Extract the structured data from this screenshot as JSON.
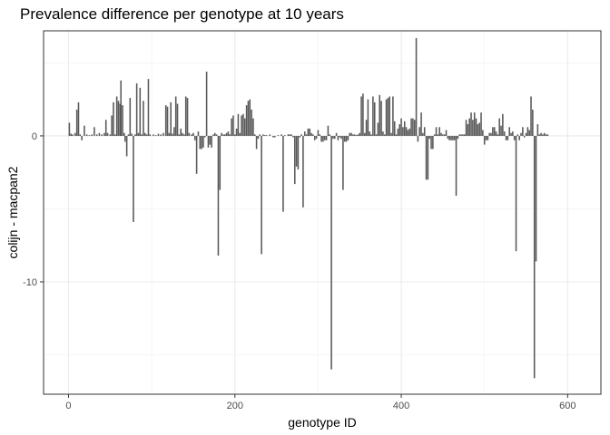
{
  "chart_data": {
    "type": "bar",
    "title": "Prevalence difference per genotype at 10 years",
    "xlabel": "genotype ID",
    "ylabel": "colijn - macpan2",
    "xlim": [
      -30,
      640
    ],
    "ylim": [
      -17.7,
      7.2
    ],
    "xticks": [
      0,
      200,
      400,
      600
    ],
    "yticks": [
      0,
      -10
    ],
    "x_minor_gridlines": [
      100,
      300,
      500
    ],
    "y_minor_gridlines": [
      5,
      -5,
      -15
    ],
    "grid": true,
    "legend": "none",
    "bar_color": "#595959",
    "points": [
      [
        1,
        0.9
      ],
      [
        3,
        0.15
      ],
      [
        5,
        0.1
      ],
      [
        8,
        0.2
      ],
      [
        10,
        1.8
      ],
      [
        12,
        2.3
      ],
      [
        14,
        0.1
      ],
      [
        16,
        -0.3
      ],
      [
        19,
        0.7
      ],
      [
        22,
        0.1
      ],
      [
        25,
        0.05
      ],
      [
        28,
        0.1
      ],
      [
        31,
        0.6
      ],
      [
        34,
        0.1
      ],
      [
        37,
        0.2
      ],
      [
        40,
        0.1
      ],
      [
        43,
        0.2
      ],
      [
        45,
        1.1
      ],
      [
        47,
        0.2
      ],
      [
        50,
        0.1
      ],
      [
        52,
        1.4
      ],
      [
        54,
        2.3
      ],
      [
        56,
        0.1
      ],
      [
        58,
        2.7
      ],
      [
        60,
        2.4
      ],
      [
        62,
        2.2
      ],
      [
        63,
        3.8
      ],
      [
        65,
        2.1
      ],
      [
        67,
        0.2
      ],
      [
        68,
        -0.4
      ],
      [
        70,
        -1.4
      ],
      [
        72,
        0.1
      ],
      [
        74,
        2.6
      ],
      [
        76,
        0.15
      ],
      [
        78,
        -5.9
      ],
      [
        80,
        0.1
      ],
      [
        82,
        3.6
      ],
      [
        84,
        0.2
      ],
      [
        86,
        3.3
      ],
      [
        88,
        0.1
      ],
      [
        90,
        2.4
      ],
      [
        92,
        0.2
      ],
      [
        94,
        0.1
      ],
      [
        96,
        3.9
      ],
      [
        98,
        0.1
      ],
      [
        102,
        0.1
      ],
      [
        105,
        0.05
      ],
      [
        108,
        0.15
      ],
      [
        111,
        0.1
      ],
      [
        114,
        0.2
      ],
      [
        117,
        2.1
      ],
      [
        119,
        2.0
      ],
      [
        121,
        0.2
      ],
      [
        123,
        2.3
      ],
      [
        125,
        0.15
      ],
      [
        127,
        0.6
      ],
      [
        129,
        2.7
      ],
      [
        131,
        2.2
      ],
      [
        133,
        0.1
      ],
      [
        135,
        0.5
      ],
      [
        137,
        0.2
      ],
      [
        139,
        0.1
      ],
      [
        141,
        2.7
      ],
      [
        143,
        2.6
      ],
      [
        145,
        0.2
      ],
      [
        148,
        0.1
      ],
      [
        150,
        0.2
      ],
      [
        152,
        -0.3
      ],
      [
        154,
        -2.6
      ],
      [
        156,
        0.3
      ],
      [
        158,
        -0.9
      ],
      [
        160,
        -0.9
      ],
      [
        162,
        -0.8
      ],
      [
        164,
        -0.1
      ],
      [
        166,
        4.4
      ],
      [
        168,
        -0.8
      ],
      [
        170,
        -0.6
      ],
      [
        172,
        -0.8
      ],
      [
        174,
        0.1
      ],
      [
        176,
        0.2
      ],
      [
        178,
        0.1
      ],
      [
        180,
        -8.2
      ],
      [
        182,
        -3.7
      ],
      [
        184,
        0.2
      ],
      [
        186,
        0.1
      ],
      [
        188,
        0.1
      ],
      [
        190,
        0.2
      ],
      [
        192,
        0.3
      ],
      [
        194,
        0.1
      ],
      [
        196,
        1.2
      ],
      [
        198,
        1.4
      ],
      [
        200,
        0.1
      ],
      [
        202,
        0.5
      ],
      [
        204,
        1.5
      ],
      [
        206,
        0.2
      ],
      [
        208,
        1.4
      ],
      [
        210,
        1.5
      ],
      [
        212,
        1.2
      ],
      [
        214,
        2.1
      ],
      [
        216,
        2.4
      ],
      [
        218,
        2.5
      ],
      [
        220,
        1.8
      ],
      [
        222,
        1.2
      ],
      [
        224,
        0.1
      ],
      [
        226,
        -0.9
      ],
      [
        228,
        -0.2
      ],
      [
        230,
        0.1
      ],
      [
        232,
        -8.1
      ],
      [
        234,
        0.1
      ],
      [
        236,
        0.05
      ],
      [
        238,
        0.05
      ],
      [
        242,
        0.1
      ],
      [
        246,
        -0.1
      ],
      [
        248,
        -0.1
      ],
      [
        252,
        0.05
      ],
      [
        256,
        0.1
      ],
      [
        258,
        -5.2
      ],
      [
        260,
        0.05
      ],
      [
        264,
        0.1
      ],
      [
        266,
        0.1
      ],
      [
        268,
        0.1
      ],
      [
        270,
        -0.1
      ],
      [
        272,
        -3.3
      ],
      [
        274,
        -2.1
      ],
      [
        276,
        -2.3
      ],
      [
        278,
        -0.1
      ],
      [
        280,
        0.1
      ],
      [
        282,
        -4.9
      ],
      [
        284,
        0.3
      ],
      [
        286,
        0.1
      ],
      [
        288,
        0.5
      ],
      [
        290,
        0.5
      ],
      [
        292,
        0.2
      ],
      [
        294,
        0.1
      ],
      [
        296,
        -0.3
      ],
      [
        298,
        -0.2
      ],
      [
        300,
        0.4
      ],
      [
        302,
        0.1
      ],
      [
        304,
        -0.4
      ],
      [
        306,
        -0.4
      ],
      [
        308,
        -0.3
      ],
      [
        310,
        -0.3
      ],
      [
        312,
        0.7
      ],
      [
        314,
        0.1
      ],
      [
        316,
        -16.0
      ],
      [
        318,
        -0.2
      ],
      [
        320,
        -0.2
      ],
      [
        322,
        0.2
      ],
      [
        324,
        -0.3
      ],
      [
        326,
        -0.1
      ],
      [
        328,
        -0.2
      ],
      [
        330,
        -3.7
      ],
      [
        332,
        -0.4
      ],
      [
        334,
        -0.4
      ],
      [
        336,
        -0.3
      ],
      [
        338,
        0.2
      ],
      [
        340,
        0.2
      ],
      [
        342,
        0.1
      ],
      [
        344,
        0.1
      ],
      [
        346,
        0.05
      ],
      [
        348,
        0.1
      ],
      [
        350,
        0.2
      ],
      [
        352,
        2.7
      ],
      [
        354,
        2.9
      ],
      [
        356,
        0.2
      ],
      [
        358,
        1.1
      ],
      [
        360,
        2.5
      ],
      [
        362,
        0.3
      ],
      [
        364,
        0.1
      ],
      [
        366,
        2.7
      ],
      [
        368,
        2.3
      ],
      [
        370,
        0.1
      ],
      [
        372,
        0.9
      ],
      [
        374,
        2.8
      ],
      [
        376,
        2.4
      ],
      [
        378,
        0.3
      ],
      [
        380,
        0.1
      ],
      [
        382,
        2.5
      ],
      [
        384,
        2.6
      ],
      [
        386,
        2.7
      ],
      [
        388,
        0.2
      ],
      [
        390,
        2.7
      ],
      [
        392,
        1.0
      ],
      [
        394,
        0.1
      ],
      [
        396,
        0.5
      ],
      [
        398,
        0.8
      ],
      [
        400,
        1.2
      ],
      [
        402,
        0.6
      ],
      [
        404,
        1.0
      ],
      [
        406,
        0.6
      ],
      [
        408,
        0.4
      ],
      [
        410,
        0.5
      ],
      [
        412,
        1.2
      ],
      [
        414,
        1.2
      ],
      [
        416,
        1.1
      ],
      [
        418,
        6.7
      ],
      [
        420,
        -0.4
      ],
      [
        422,
        0.6
      ],
      [
        424,
        1.6
      ],
      [
        426,
        0.2
      ],
      [
        428,
        0.6
      ],
      [
        430,
        -3.0
      ],
      [
        432,
        -3.0
      ],
      [
        434,
        -0.2
      ],
      [
        436,
        -0.9
      ],
      [
        438,
        -0.9
      ],
      [
        440,
        0.1
      ],
      [
        442,
        0.6
      ],
      [
        444,
        0.1
      ],
      [
        446,
        0.6
      ],
      [
        448,
        0.2
      ],
      [
        450,
        0.1
      ],
      [
        452,
        0.1
      ],
      [
        454,
        0.4
      ],
      [
        456,
        -0.2
      ],
      [
        458,
        -0.3
      ],
      [
        460,
        -0.3
      ],
      [
        462,
        -0.3
      ],
      [
        464,
        -0.3
      ],
      [
        466,
        -4.1
      ],
      [
        468,
        -0.2
      ],
      [
        470,
        0.1
      ],
      [
        472,
        0.1
      ],
      [
        474,
        0.1
      ],
      [
        476,
        0.1
      ],
      [
        478,
        1.1
      ],
      [
        480,
        0.8
      ],
      [
        482,
        1.2
      ],
      [
        484,
        1.6
      ],
      [
        486,
        1.1
      ],
      [
        488,
        1.6
      ],
      [
        490,
        1.2
      ],
      [
        492,
        0.8
      ],
      [
        494,
        0.9
      ],
      [
        496,
        1.6
      ],
      [
        498,
        0.4
      ],
      [
        500,
        -0.6
      ],
      [
        502,
        -0.3
      ],
      [
        504,
        -0.3
      ],
      [
        506,
        0.2
      ],
      [
        508,
        0.2
      ],
      [
        510,
        0.6
      ],
      [
        512,
        0.6
      ],
      [
        514,
        0.3
      ],
      [
        516,
        0.1
      ],
      [
        518,
        1.2
      ],
      [
        520,
        0.7
      ],
      [
        522,
        1.5
      ],
      [
        524,
        0.3
      ],
      [
        526,
        -0.3
      ],
      [
        528,
        -0.3
      ],
      [
        530,
        0.6
      ],
      [
        532,
        0.2
      ],
      [
        534,
        0.3
      ],
      [
        536,
        -0.3
      ],
      [
        538,
        -7.9
      ],
      [
        540,
        0.1
      ],
      [
        542,
        -0.3
      ],
      [
        544,
        0.2
      ],
      [
        546,
        0.6
      ],
      [
        548,
        -0.1
      ],
      [
        550,
        0.2
      ],
      [
        552,
        0.6
      ],
      [
        554,
        0.4
      ],
      [
        556,
        2.7
      ],
      [
        558,
        1.8
      ],
      [
        560,
        -16.6
      ],
      [
        562,
        -8.6
      ],
      [
        564,
        0.8
      ],
      [
        566,
        0.1
      ],
      [
        568,
        0.2
      ],
      [
        570,
        0.1
      ],
      [
        572,
        0.2
      ],
      [
        574,
        0.1
      ],
      [
        576,
        0.1
      ]
    ]
  }
}
